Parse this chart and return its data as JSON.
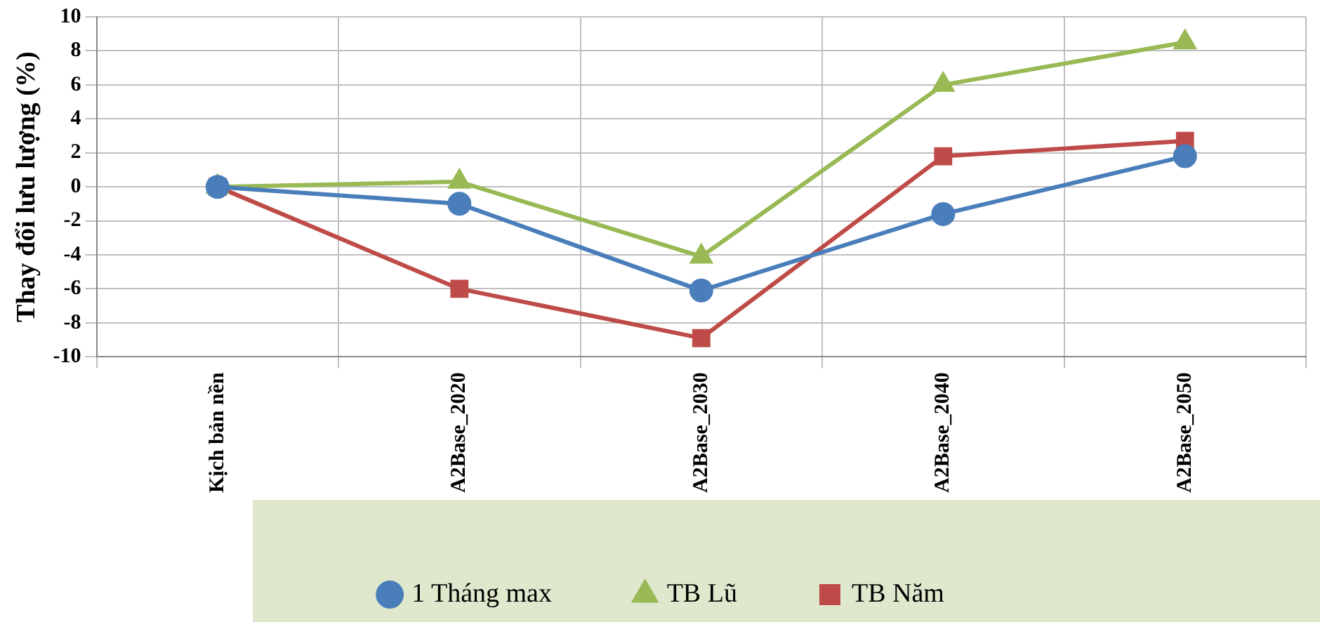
{
  "chart_data": {
    "type": "line",
    "ylabel": "Thay đổi lưu lượng (%)",
    "categories": [
      "Kịch bản nền",
      "A2Base_2020",
      "A2Base_2030",
      "A2Base_2040",
      "A2Base_2050"
    ],
    "series": [
      {
        "name": "1 Tháng max",
        "color": "#4a7ebb",
        "marker": "circle",
        "values": [
          0,
          -1,
          -6.1,
          -1.6,
          1.8
        ]
      },
      {
        "name": "TB Lũ",
        "color": "#98b954",
        "marker": "triangle",
        "values": [
          0,
          0.3,
          -4.1,
          6,
          8.5
        ]
      },
      {
        "name": "TB Năm",
        "color": "#be4b48",
        "marker": "square",
        "values": [
          0,
          -6,
          -8.9,
          1.8,
          2.7
        ]
      }
    ],
    "ylim": [
      -10,
      10
    ],
    "yticks": [
      -10,
      -8,
      -6,
      -4,
      -2,
      0,
      2,
      4,
      6,
      8,
      10
    ],
    "grid": true,
    "legend": "bottom",
    "line_style": "solid"
  }
}
